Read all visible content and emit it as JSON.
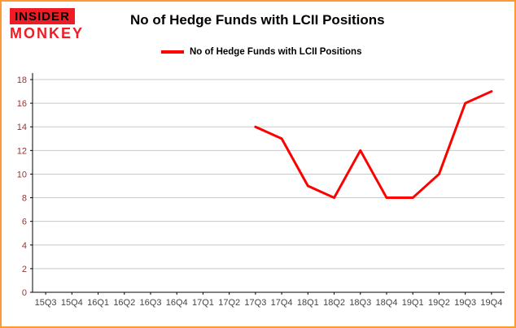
{
  "brand": {
    "line1": "INSIDER",
    "line2": "MONKEY"
  },
  "header": {
    "title": "No of Hedge Funds with LCII Positions"
  },
  "legend": {
    "label": "No of Hedge Funds with LCII Positions",
    "color": "#ff0000"
  },
  "chart_data": {
    "type": "line",
    "title": "No of Hedge Funds with LCII Positions",
    "xlabel": "",
    "ylabel": "",
    "categories": [
      "15Q3",
      "15Q4",
      "16Q1",
      "16Q2",
      "16Q3",
      "16Q4",
      "17Q1",
      "17Q2",
      "17Q3",
      "17Q4",
      "18Q1",
      "18Q2",
      "18Q3",
      "18Q4",
      "19Q1",
      "19Q2",
      "19Q3",
      "19Q4"
    ],
    "series": [
      {
        "name": "No of Hedge Funds with LCII Positions",
        "color": "#ff0000",
        "values": [
          null,
          null,
          null,
          null,
          null,
          null,
          null,
          null,
          14,
          13,
          9,
          8,
          12,
          8,
          8,
          10,
          16,
          17
        ]
      }
    ],
    "ylim": [
      0,
      18
    ],
    "ytick_step": 2,
    "grid": true,
    "legend_position": "top-left"
  },
  "colors": {
    "frame_border": "#ff9933",
    "grid": "#c8c8c8",
    "axis": "#000000",
    "y_tick": "#993333",
    "x_tick": "#444444",
    "logo_red": "#ee1c25"
  }
}
